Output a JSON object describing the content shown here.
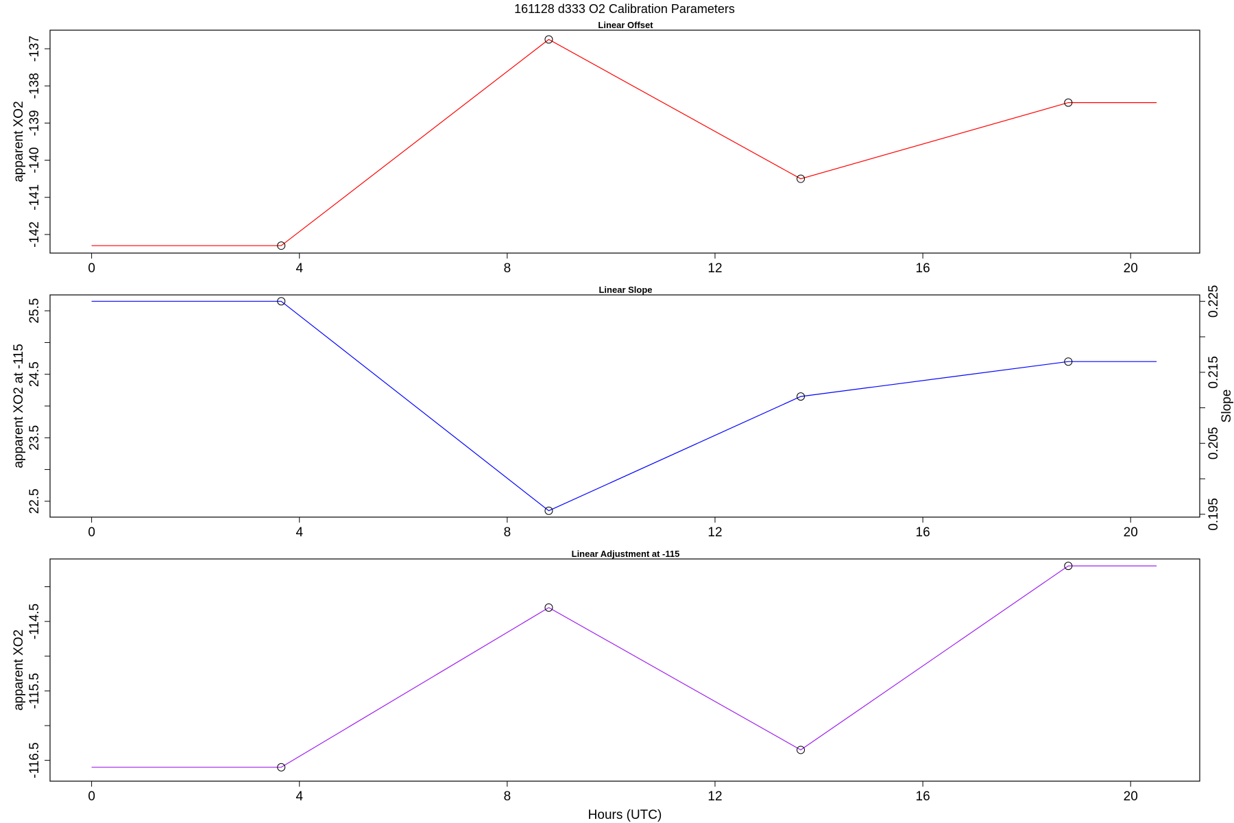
{
  "figure": {
    "title": "161128   d333   O2 Calibration Parameters",
    "xlabel": "Hours (UTC)"
  },
  "chart_data": [
    {
      "type": "line",
      "title": "Linear Offset",
      "xlabel": "",
      "ylabel": "apparent XO2",
      "x": [
        0,
        3.65,
        8.8,
        13.65,
        18.8,
        20.5
      ],
      "y": [
        -142.3,
        -142.3,
        -136.75,
        -140.5,
        -138.45,
        -138.45
      ],
      "markers": [
        1,
        2,
        3,
        4
      ],
      "xlim": [
        -0.8,
        21.33
      ],
      "ylim": [
        -142.5,
        -136.5
      ],
      "xticks": [
        0,
        4,
        8,
        12,
        16,
        20
      ],
      "yticks": [
        -142,
        -141,
        -140,
        -139,
        -138,
        -137
      ],
      "line_color": "#ff0000",
      "marker_color": "#000000",
      "grid": false
    },
    {
      "type": "line",
      "title": "Linear Slope",
      "xlabel": "",
      "ylabel": "apparent XO2 at -115",
      "y2label": "Slope",
      "x": [
        0,
        3.65,
        8.8,
        13.65,
        18.8,
        20.5
      ],
      "y": [
        25.65,
        25.65,
        22.35,
        24.15,
        24.7,
        24.7
      ],
      "markers": [
        1,
        2,
        3,
        4
      ],
      "xlim": [
        -0.8,
        21.33
      ],
      "ylim": [
        22.25,
        25.75
      ],
      "xticks": [
        0,
        4,
        8,
        12,
        16,
        20
      ],
      "yticks": [
        22.5,
        23.0,
        23.5,
        24.0,
        24.5,
        25.0,
        25.5
      ],
      "yticklabels": [
        "22.5",
        "",
        "23.5",
        "",
        "24.5",
        "",
        "25.5"
      ],
      "y2lim": [
        0.1946,
        0.2259
      ],
      "y2ticks": [
        0.195,
        0.2,
        0.205,
        0.21,
        0.215,
        0.22,
        0.225
      ],
      "y2ticklabels": [
        "0.195",
        "",
        "0.205",
        "",
        "0.215",
        "",
        "0.225"
      ],
      "line_color": "#0000ff",
      "marker_color": "#000000",
      "grid": false
    },
    {
      "type": "line",
      "title": "Linear Adjustment at -115",
      "xlabel": "Hours (UTC)",
      "ylabel": "apparent XO2",
      "x": [
        0,
        3.65,
        8.8,
        13.65,
        18.8,
        20.5
      ],
      "y": [
        -116.6,
        -116.6,
        -114.3,
        -116.35,
        -113.7,
        -113.7
      ],
      "markers": [
        1,
        2,
        3,
        4
      ],
      "xlim": [
        -0.8,
        21.33
      ],
      "ylim": [
        -116.8,
        -113.6
      ],
      "xticks": [
        0,
        4,
        8,
        12,
        16,
        20
      ],
      "yticks": [
        -116.5,
        -116.0,
        -115.5,
        -115.0,
        -114.5,
        -114.0
      ],
      "yticklabels": [
        "-116.5",
        "",
        "-115.5",
        "",
        "-114.5",
        ""
      ],
      "line_color": "#a020f0",
      "marker_color": "#000000",
      "grid": false
    }
  ]
}
